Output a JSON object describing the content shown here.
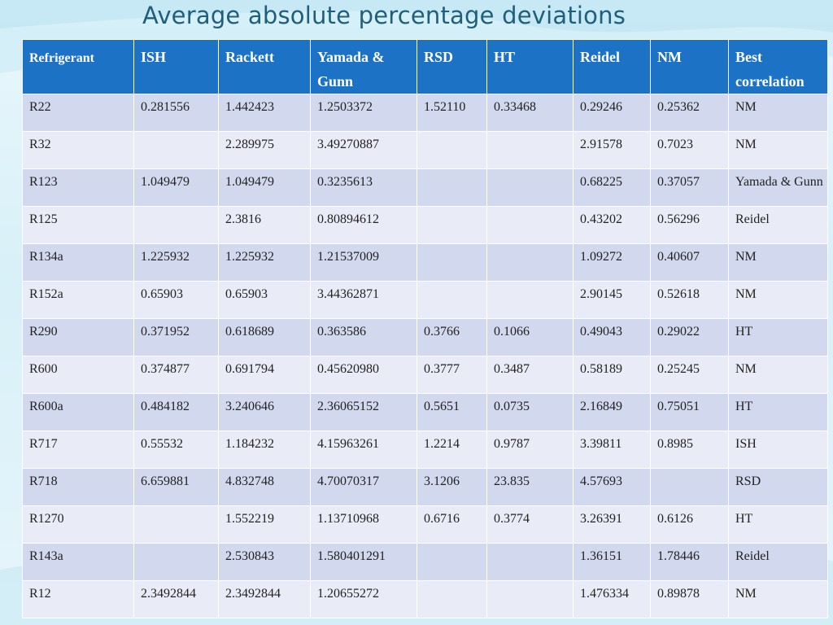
{
  "title": "Average absolute percentage deviations",
  "colors": {
    "header_bg": "#1c72c4",
    "row_odd": "#d2d9ef",
    "row_even": "#e9ecf7",
    "title": "#1f5f7a"
  },
  "table": {
    "headers": [
      "Refrigerant",
      "ISH",
      "Rackett",
      "Yamada & Gunn",
      "RSD",
      "HT",
      "Reidel",
      "NM",
      "Best correlation"
    ],
    "rows": [
      [
        "R22",
        "0.281556",
        "1.442423",
        "1.2503372",
        "1.52110",
        "0.33468",
        "0.29246",
        "0.25362",
        "NM"
      ],
      [
        "R32",
        "",
        "2.289975",
        "3.49270887",
        "",
        "",
        "2.91578",
        "0.7023",
        "NM"
      ],
      [
        "R123",
        "1.049479",
        "1.049479",
        "0.3235613",
        "",
        "",
        "0.68225",
        "0.37057",
        "Yamada & Gunn"
      ],
      [
        "R125",
        "",
        "2.3816",
        "0.80894612",
        "",
        "",
        "0.43202",
        "0.56296",
        "Reidel"
      ],
      [
        "R134a",
        "1.225932",
        "1.225932",
        "1.21537009",
        "",
        "",
        "1.09272",
        "0.40607",
        "NM"
      ],
      [
        "R152a",
        "0.65903",
        "0.65903",
        "3.44362871",
        "",
        "",
        "2.90145",
        "0.52618",
        "NM"
      ],
      [
        "R290",
        "0.371952",
        "0.618689",
        "0.363586",
        "0.3766",
        "0.1066",
        "0.49043",
        "0.29022",
        "HT"
      ],
      [
        "R600",
        "0.374877",
        "0.691794",
        "0.45620980",
        "0.3777",
        "0.3487",
        "0.58189",
        "0.25245",
        "NM"
      ],
      [
        "R600a",
        "0.484182",
        "3.240646",
        "2.36065152",
        "0.5651",
        "0.0735",
        "2.16849",
        "0.75051",
        "HT"
      ],
      [
        "R717",
        "0.55532",
        "1.184232",
        "4.15963261",
        "1.2214",
        "0.9787",
        "3.39811",
        "0.8985",
        "ISH"
      ],
      [
        "R718",
        "6.659881",
        "4.832748",
        "4.70070317",
        "3.1206",
        "23.835",
        "4.57693",
        "",
        "RSD"
      ],
      [
        "R1270",
        "",
        "1.552219",
        "1.13710968",
        "0.6716",
        "0.3774",
        "3.26391",
        "0.6126",
        "HT"
      ],
      [
        "R143a",
        "",
        "2.530843",
        "1.580401291",
        "",
        "",
        "1.36151",
        "1.78446",
        "Reidel"
      ],
      [
        "R12",
        "2.3492844",
        "2.3492844",
        "1.20655272",
        "",
        "",
        "1.476334",
        "0.89878",
        "NM"
      ]
    ]
  }
}
